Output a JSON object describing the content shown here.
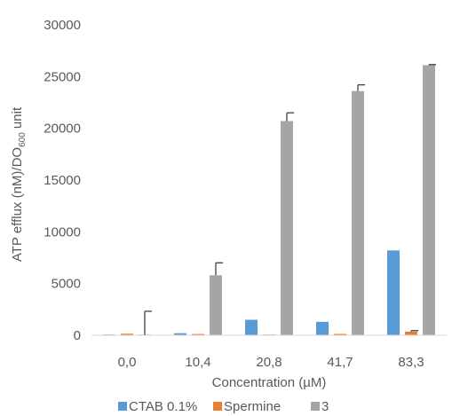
{
  "chart_data": {
    "type": "bar",
    "categories": [
      "0,0",
      "10,4",
      "20,8",
      "41,7",
      "83,3"
    ],
    "series": [
      {
        "name": "CTAB 0.1%",
        "color": "#5b9bd5",
        "values": [
          60,
          200,
          1500,
          1300,
          8200
        ],
        "errors": [
          0,
          0,
          0,
          0,
          0
        ]
      },
      {
        "name": "Spermine",
        "color": "#ed7d31",
        "values": [
          150,
          120,
          30,
          130,
          350
        ],
        "errors": [
          0,
          0,
          0,
          0,
          100
        ]
      },
      {
        "name": "3",
        "color": "#a5a5a5",
        "values": [
          20,
          5800,
          20700,
          23600,
          26100
        ],
        "errors": [
          2300,
          1200,
          800,
          600,
          60
        ]
      }
    ],
    "xlabel": "Concentration (µM)",
    "ylabel": {
      "prefix": "ATP efflux (nM)/DO",
      "subscript": "600",
      "suffix": " unit"
    },
    "ylim": [
      0,
      30000
    ],
    "yticks": [
      0,
      5000,
      10000,
      15000,
      20000,
      25000,
      30000
    ],
    "grid": false,
    "legend_position": "bottom"
  }
}
